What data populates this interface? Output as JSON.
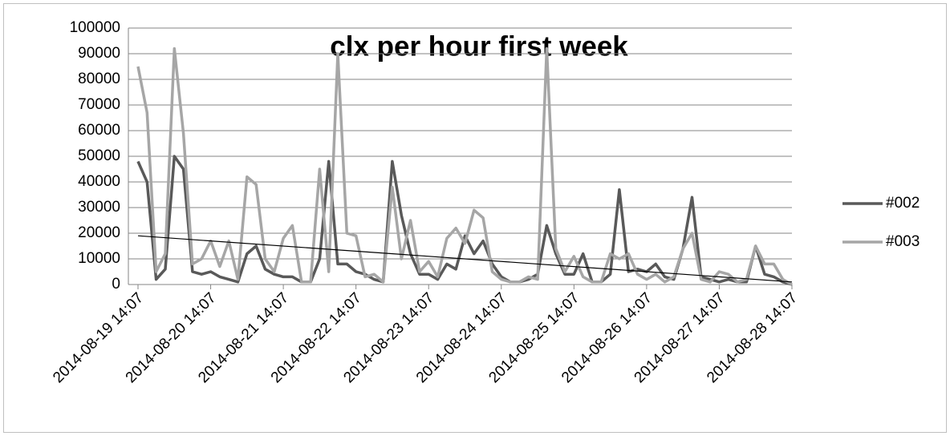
{
  "chart_data": {
    "type": "line",
    "title": "clx per hour first week",
    "x": [
      "2014-08-19 14:07",
      "2014-08-19 17:07",
      "2014-08-19 20:07",
      "2014-08-19 23:07",
      "2014-08-20 02:07",
      "2014-08-20 05:07",
      "2014-08-20 08:07",
      "2014-08-20 11:07",
      "2014-08-20 14:07",
      "2014-08-20 17:07",
      "2014-08-20 20:07",
      "2014-08-20 23:07",
      "2014-08-21 02:07",
      "2014-08-21 05:07",
      "2014-08-21 08:07",
      "2014-08-21 11:07",
      "2014-08-21 14:07",
      "2014-08-21 17:07",
      "2014-08-21 20:07",
      "2014-08-21 23:07",
      "2014-08-22 02:07",
      "2014-08-22 05:07",
      "2014-08-22 08:07",
      "2014-08-22 11:07",
      "2014-08-22 14:07",
      "2014-08-22 17:07",
      "2014-08-22 20:07",
      "2014-08-22 23:07",
      "2014-08-23 02:07",
      "2014-08-23 05:07",
      "2014-08-23 08:07",
      "2014-08-23 11:07",
      "2014-08-23 14:07",
      "2014-08-23 17:07",
      "2014-08-23 20:07",
      "2014-08-23 23:07",
      "2014-08-24 02:07",
      "2014-08-24 05:07",
      "2014-08-24 08:07",
      "2014-08-24 11:07",
      "2014-08-24 14:07",
      "2014-08-24 17:07",
      "2014-08-24 20:07",
      "2014-08-24 23:07",
      "2014-08-25 02:07",
      "2014-08-25 05:07",
      "2014-08-25 08:07",
      "2014-08-25 11:07",
      "2014-08-25 14:07",
      "2014-08-25 17:07",
      "2014-08-25 20:07",
      "2014-08-25 23:07",
      "2014-08-26 02:07",
      "2014-08-26 05:07",
      "2014-08-26 08:07",
      "2014-08-26 11:07",
      "2014-08-26 14:07",
      "2014-08-26 17:07",
      "2014-08-26 20:07",
      "2014-08-26 23:07",
      "2014-08-27 02:07",
      "2014-08-27 05:07",
      "2014-08-27 08:07",
      "2014-08-27 11:07",
      "2014-08-27 14:07",
      "2014-08-27 17:07",
      "2014-08-27 20:07",
      "2014-08-27 23:07",
      "2014-08-28 02:07",
      "2014-08-28 05:07",
      "2014-08-28 08:07",
      "2014-08-28 11:07",
      "2014-08-28 14:07"
    ],
    "series": [
      {
        "name": "#002",
        "color": "#595959",
        "values": [
          48000,
          40000,
          2000,
          6000,
          50000,
          45000,
          5000,
          4000,
          5000,
          3000,
          2000,
          1000,
          12000,
          15000,
          6000,
          4000,
          3000,
          3000,
          1000,
          1000,
          10000,
          48000,
          8000,
          8000,
          5000,
          4000,
          2000,
          1000,
          48000,
          27000,
          12000,
          4000,
          4000,
          2000,
          8000,
          6000,
          19000,
          12000,
          17000,
          8000,
          3000,
          1000,
          1000,
          2000,
          4000,
          23000,
          12000,
          4000,
          4000,
          12000,
          1000,
          1000,
          4000,
          37000,
          5000,
          6000,
          5000,
          8000,
          3000,
          2000,
          14000,
          34000,
          3000,
          2000,
          1000,
          2000,
          1000,
          1000,
          15000,
          4000,
          3000,
          1000,
          0
        ]
      },
      {
        "name": "#003",
        "color": "#a6a6a6",
        "values": [
          85000,
          67000,
          5000,
          12000,
          92000,
          59000,
          8000,
          10000,
          17000,
          7000,
          17000,
          2000,
          42000,
          39000,
          10000,
          5000,
          18000,
          23000,
          1000,
          1000,
          45000,
          5000,
          90000,
          20000,
          19000,
          3000,
          4000,
          1000,
          38000,
          10000,
          25000,
          5000,
          9000,
          3000,
          18000,
          22000,
          16000,
          29000,
          26000,
          5000,
          2000,
          1000,
          1000,
          3000,
          2000,
          92000,
          14000,
          5000,
          11000,
          3000,
          1000,
          1000,
          12000,
          10000,
          12000,
          4000,
          2000,
          4000,
          1000,
          3000,
          14000,
          20000,
          2000,
          1000,
          5000,
          4000,
          1000,
          2000,
          15000,
          8000,
          8000,
          2000,
          0
        ]
      }
    ],
    "trend": {
      "color": "#000000",
      "values": [
        19000,
        1000
      ]
    },
    "xlim": [
      "2014-08-19 14:07",
      "2014-08-28 14:07"
    ],
    "xticks": [
      "2014-08-19 14:07",
      "2014-08-20 14:07",
      "2014-08-21 14:07",
      "2014-08-22 14:07",
      "2014-08-23 14:07",
      "2014-08-24 14:07",
      "2014-08-25 14:07",
      "2014-08-26 14:07",
      "2014-08-27 14:07",
      "2014-08-28 14:07"
    ],
    "ylim": [
      0,
      100000
    ],
    "yticks": [
      0,
      10000,
      20000,
      30000,
      40000,
      50000,
      60000,
      70000,
      80000,
      90000,
      100000
    ],
    "grid": true,
    "legend": "right"
  }
}
